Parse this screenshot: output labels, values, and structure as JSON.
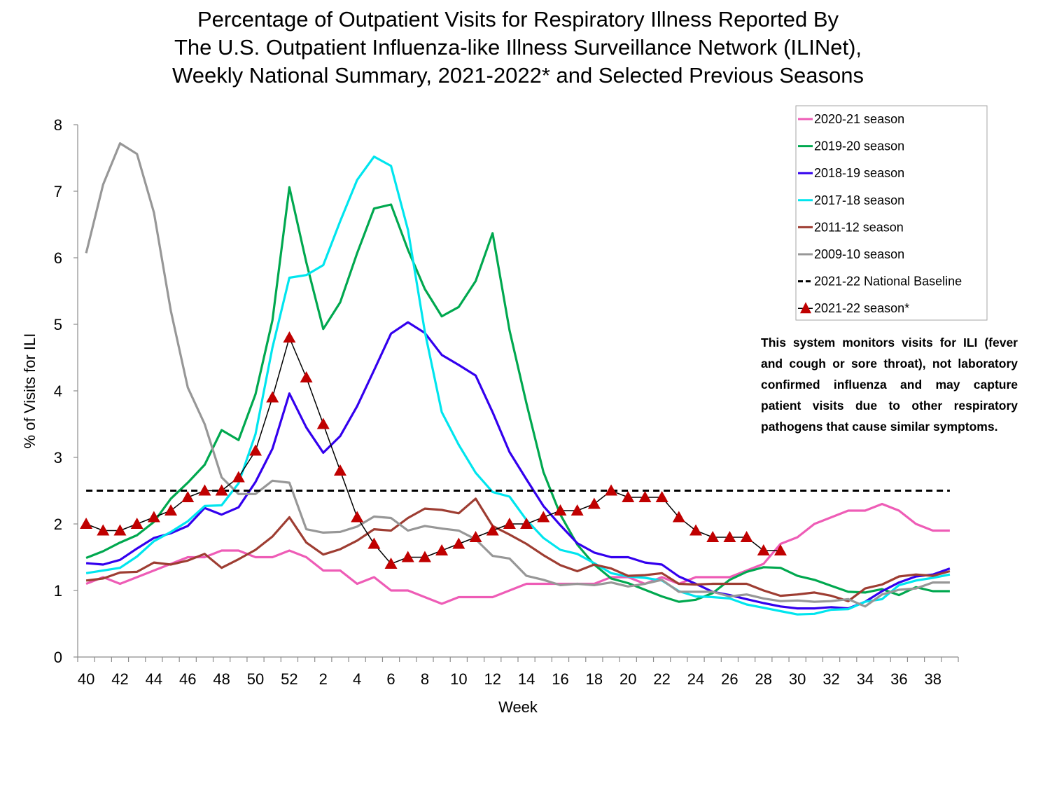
{
  "chart_data": {
    "type": "line",
    "title": [
      "Percentage of Outpatient Visits for Respiratory Illness Reported By",
      "The U.S. Outpatient Influenza-like Illness Surveillance Network (ILINet),",
      "Weekly National Summary, 2021-2022* and Selected Previous Seasons"
    ],
    "xlabel": "Week",
    "ylabel": "% of Visits for ILI",
    "ylim": [
      0,
      8
    ],
    "yticks": [
      0,
      1,
      2,
      3,
      4,
      5,
      6,
      7,
      8
    ],
    "x": [
      40,
      41,
      42,
      43,
      44,
      45,
      46,
      47,
      48,
      49,
      50,
      51,
      52,
      1,
      2,
      3,
      4,
      5,
      6,
      7,
      8,
      9,
      10,
      11,
      12,
      13,
      14,
      15,
      16,
      17,
      18,
      19,
      20,
      21,
      22,
      23,
      24,
      25,
      26,
      27,
      28,
      29,
      30,
      31,
      32,
      33,
      34,
      35,
      36,
      37,
      38,
      39
    ],
    "xtick_labels": [
      "40",
      "42",
      "44",
      "46",
      "48",
      "50",
      "52",
      "2",
      "4",
      "6",
      "8",
      "10",
      "12",
      "14",
      "16",
      "18",
      "20",
      "22",
      "24",
      "26",
      "28",
      "30",
      "32",
      "34",
      "36",
      "38"
    ],
    "grid": false,
    "legend_position": "top-right",
    "series": [
      {
        "name": "2020-21 season",
        "color": "#EE5CB6",
        "style": "line",
        "values": [
          1.1,
          1.2,
          1.1,
          1.2,
          1.3,
          1.4,
          1.5,
          1.5,
          1.6,
          1.6,
          1.5,
          1.5,
          1.6,
          1.5,
          1.3,
          1.3,
          1.1,
          1.2,
          1.0,
          1.0,
          0.9,
          0.8,
          0.9,
          0.9,
          0.9,
          1.0,
          1.1,
          1.1,
          1.1,
          1.1,
          1.1,
          1.2,
          1.2,
          1.1,
          1.2,
          1.1,
          1.2,
          1.2,
          1.2,
          1.3,
          1.4,
          1.7,
          1.8,
          2.0,
          2.1,
          2.2,
          2.2,
          2.3,
          2.2,
          2.0,
          1.9,
          1.9
        ]
      },
      {
        "name": "2019-20 season",
        "color": "#00A84F",
        "style": "line",
        "values": [
          1.49,
          1.59,
          1.72,
          1.83,
          2.03,
          2.38,
          2.62,
          2.89,
          3.41,
          3.26,
          3.95,
          5.06,
          7.06,
          5.93,
          4.93,
          5.33,
          6.07,
          6.74,
          6.8,
          6.12,
          5.53,
          5.12,
          5.26,
          5.65,
          6.37,
          4.91,
          3.81,
          2.78,
          2.14,
          1.69,
          1.39,
          1.18,
          1.11,
          1.01,
          0.91,
          0.83,
          0.86,
          0.96,
          1.16,
          1.28,
          1.35,
          1.34,
          1.22,
          1.16,
          1.07,
          0.98,
          0.97,
          1.02,
          0.93,
          1.05,
          0.99,
          0.99
        ]
      },
      {
        "name": "2018-19 season",
        "color": "#3300EE",
        "style": "line",
        "values": [
          1.41,
          1.39,
          1.46,
          1.63,
          1.79,
          1.86,
          1.97,
          2.24,
          2.14,
          2.25,
          2.63,
          3.13,
          3.96,
          3.45,
          3.07,
          3.32,
          3.77,
          4.31,
          4.86,
          5.03,
          4.87,
          4.54,
          4.39,
          4.23,
          3.68,
          3.08,
          2.67,
          2.27,
          1.98,
          1.71,
          1.57,
          1.5,
          1.5,
          1.42,
          1.39,
          1.21,
          1.1,
          0.98,
          0.93,
          0.87,
          0.81,
          0.76,
          0.73,
          0.73,
          0.75,
          0.73,
          0.83,
          0.99,
          1.12,
          1.21,
          1.24,
          1.33
        ]
      },
      {
        "name": "2017-18 season",
        "color": "#00E5EE",
        "style": "line",
        "values": [
          1.26,
          1.3,
          1.34,
          1.51,
          1.74,
          1.88,
          2.04,
          2.27,
          2.28,
          2.61,
          3.35,
          4.65,
          5.7,
          5.74,
          5.89,
          6.55,
          7.17,
          7.52,
          7.38,
          6.42,
          4.89,
          3.68,
          3.19,
          2.77,
          2.48,
          2.41,
          2.06,
          1.79,
          1.61,
          1.55,
          1.41,
          1.26,
          1.21,
          1.19,
          1.15,
          0.99,
          0.91,
          0.9,
          0.88,
          0.79,
          0.74,
          0.69,
          0.64,
          0.65,
          0.71,
          0.72,
          0.83,
          0.87,
          1.08,
          1.15,
          1.19,
          1.24
        ]
      },
      {
        "name": "2011-12 season",
        "color": "#9E3D32",
        "style": "line",
        "values": [
          1.15,
          1.18,
          1.27,
          1.28,
          1.42,
          1.39,
          1.45,
          1.55,
          1.34,
          1.47,
          1.61,
          1.81,
          2.1,
          1.72,
          1.54,
          1.62,
          1.75,
          1.92,
          1.9,
          2.09,
          2.23,
          2.21,
          2.16,
          2.38,
          1.97,
          1.84,
          1.7,
          1.53,
          1.38,
          1.29,
          1.39,
          1.33,
          1.22,
          1.23,
          1.26,
          1.1,
          1.09,
          1.1,
          1.1,
          1.1,
          1.0,
          0.92,
          0.94,
          0.97,
          0.92,
          0.84,
          1.03,
          1.09,
          1.21,
          1.24,
          1.22,
          1.29
        ]
      },
      {
        "name": "2009-10 season",
        "color": "#979797",
        "style": "line",
        "values": [
          6.07,
          7.1,
          7.72,
          7.56,
          6.68,
          5.2,
          4.05,
          3.5,
          2.7,
          2.45,
          2.45,
          2.65,
          2.62,
          1.92,
          1.87,
          1.88,
          1.96,
          2.11,
          2.09,
          1.9,
          1.97,
          1.93,
          1.9,
          1.77,
          1.52,
          1.48,
          1.22,
          1.16,
          1.08,
          1.1,
          1.08,
          1.12,
          1.06,
          1.1,
          1.16,
          0.98,
          0.98,
          0.98,
          0.91,
          0.94,
          0.88,
          0.84,
          0.85,
          0.83,
          0.84,
          0.87,
          0.76,
          0.94,
          1.01,
          1.03,
          1.12,
          1.12
        ]
      },
      {
        "name": "2021-22 National Baseline",
        "color": "#000000",
        "style": "dashed",
        "values": [
          2.5,
          2.5,
          2.5,
          2.5,
          2.5,
          2.5,
          2.5,
          2.5,
          2.5,
          2.5,
          2.5,
          2.5,
          2.5,
          2.5,
          2.5,
          2.5,
          2.5,
          2.5,
          2.5,
          2.5,
          2.5,
          2.5,
          2.5,
          2.5,
          2.5,
          2.5,
          2.5,
          2.5,
          2.5,
          2.5,
          2.5,
          2.5,
          2.5,
          2.5,
          2.5,
          2.5,
          2.5,
          2.5,
          2.5,
          2.5,
          2.5,
          2.5,
          2.5,
          2.5,
          2.5,
          2.5,
          2.5,
          2.5,
          2.5,
          2.5,
          2.5,
          2.5
        ]
      },
      {
        "name": "2021-22 season*",
        "color": "#C00000",
        "style": "triangle-markers",
        "values": [
          2.0,
          1.9,
          1.9,
          2.0,
          2.1,
          2.2,
          2.4,
          2.5,
          2.5,
          2.7,
          3.1,
          3.9,
          4.8,
          4.2,
          3.5,
          2.8,
          2.1,
          1.7,
          1.4,
          1.5,
          1.5,
          1.6,
          1.7,
          1.8,
          1.9,
          2.0,
          2.0,
          2.1,
          2.2,
          2.2,
          2.3,
          2.5,
          2.4,
          2.4,
          2.4,
          2.1,
          1.9,
          1.8,
          1.8,
          1.8,
          1.6,
          1.6
        ]
      }
    ],
    "annotation": "This system monitors visits for ILI (fever and cough or sore throat), not laboratory confirmed influenza and may capture patient visits due to other respiratory pathogens that cause similar symptoms."
  }
}
